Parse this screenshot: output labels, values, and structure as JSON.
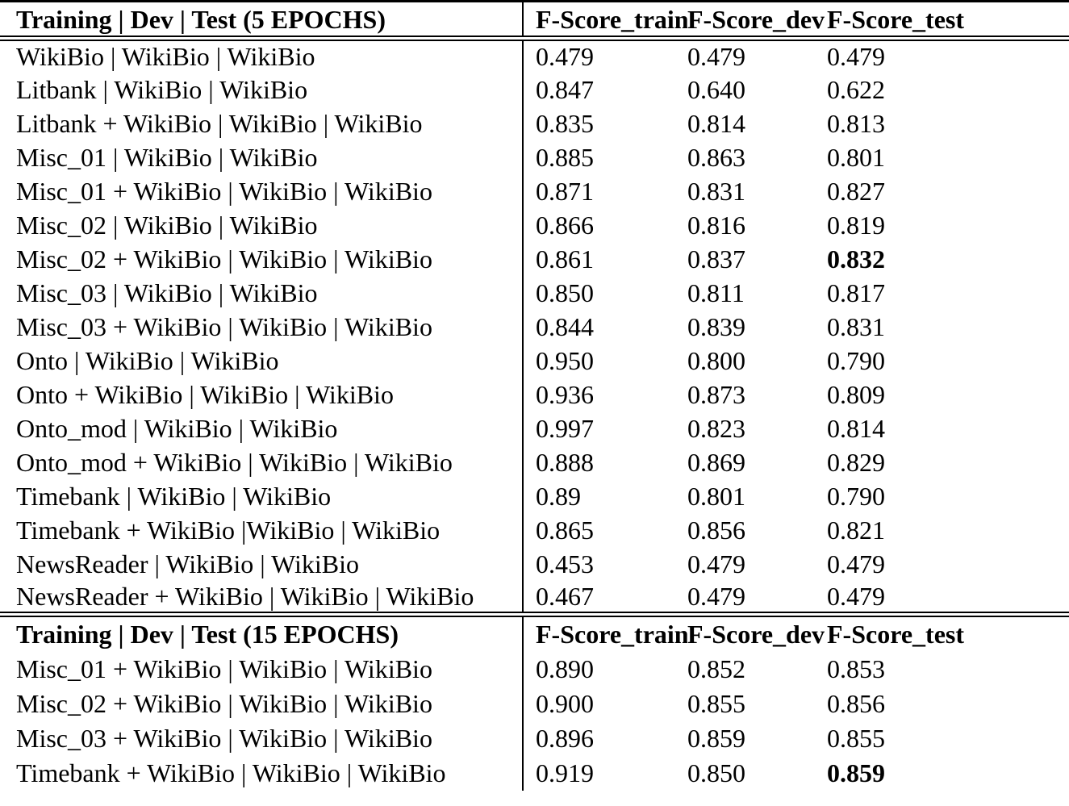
{
  "table": {
    "column_keys": [
      "train",
      "dev",
      "test"
    ],
    "sections": [
      {
        "header": "Training | Dev | Test (5 EPOCHS)",
        "columns": [
          "F-Score_train",
          "F-Score_dev",
          "F-Score_test"
        ],
        "rows": [
          {
            "label": "WikiBio | WikiBio | WikiBio",
            "train": "0.479",
            "dev": "0.479",
            "test": "0.479"
          },
          {
            "label": "Litbank | WikiBio | WikiBio",
            "train": "0.847",
            "dev": "0.640",
            "test": "0.622"
          },
          {
            "label": "Litbank + WikiBio | WikiBio | WikiBio",
            "train": "0.835",
            "dev": "0.814",
            "test": "0.813"
          },
          {
            "label": "Misc_01 | WikiBio | WikiBio",
            "train": "0.885",
            "dev": "0.863",
            "test": "0.801"
          },
          {
            "label": "Misc_01 + WikiBio | WikiBio | WikiBio",
            "train": "0.871",
            "dev": "0.831",
            "test": "0.827"
          },
          {
            "label": "Misc_02 | WikiBio | WikiBio",
            "train": "0.866",
            "dev": "0.816",
            "test": "0.819"
          },
          {
            "label": "Misc_02 + WikiBio | WikiBio | WikiBio",
            "train": "0.861",
            "dev": "0.837",
            "test": "0.832",
            "bold": [
              "test"
            ]
          },
          {
            "label": "Misc_03 | WikiBio | WikiBio",
            "train": "0.850",
            "dev": "0.811",
            "test": "0.817"
          },
          {
            "label": "Misc_03 + WikiBio | WikiBio | WikiBio",
            "train": "0.844",
            "dev": "0.839",
            "test": "0.831"
          },
          {
            "label": "Onto | WikiBio | WikiBio",
            "train": "0.950",
            "dev": "0.800",
            "test": "0.790"
          },
          {
            "label": "Onto + WikiBio | WikiBio | WikiBio",
            "train": "0.936",
            "dev": "0.873",
            "test": "0.809"
          },
          {
            "label": "Onto_mod | WikiBio | WikiBio",
            "train": "0.997",
            "dev": "0.823",
            "test": "0.814"
          },
          {
            "label": "Onto_mod + WikiBio | WikiBio | WikiBio",
            "train": "0.888",
            "dev": "0.869",
            "test": "0.829"
          },
          {
            "label": "Timebank | WikiBio | WikiBio",
            "train": "0.89",
            "dev": "0.801",
            "test": "0.790"
          },
          {
            "label": "Timebank + WikiBio |WikiBio | WikiBio",
            "train": "0.865",
            "dev": "0.856",
            "test": "0.821"
          },
          {
            "label": "NewsReader | WikiBio | WikiBio",
            "train": "0.453",
            "dev": "0.479",
            "test": "0.479"
          },
          {
            "label": "NewsReader + WikiBio | WikiBio | WikiBio",
            "train": "0.467",
            "dev": "0.479",
            "test": "0.479"
          }
        ]
      },
      {
        "header": "Training | Dev | Test (15 EPOCHS)",
        "columns": [
          "F-Score_train",
          "F-Score_dev",
          "F-Score_test"
        ],
        "rows": [
          {
            "label": "Misc_01 + WikiBio | WikiBio | WikiBio",
            "train": "0.890",
            "dev": "0.852",
            "test": "0.853"
          },
          {
            "label": "Misc_02 + WikiBio | WikiBio | WikiBio",
            "train": "0.900",
            "dev": "0.855",
            "test": "0.856"
          },
          {
            "label": "Misc_03 + WikiBio | WikiBio | WikiBio",
            "train": "0.896",
            "dev": "0.859",
            "test": "0.855"
          },
          {
            "label": "Timebank + WikiBio | WikiBio | WikiBio",
            "train": "0.919",
            "dev": "0.850",
            "test": "0.859",
            "bold": [
              "test"
            ]
          }
        ]
      }
    ]
  }
}
